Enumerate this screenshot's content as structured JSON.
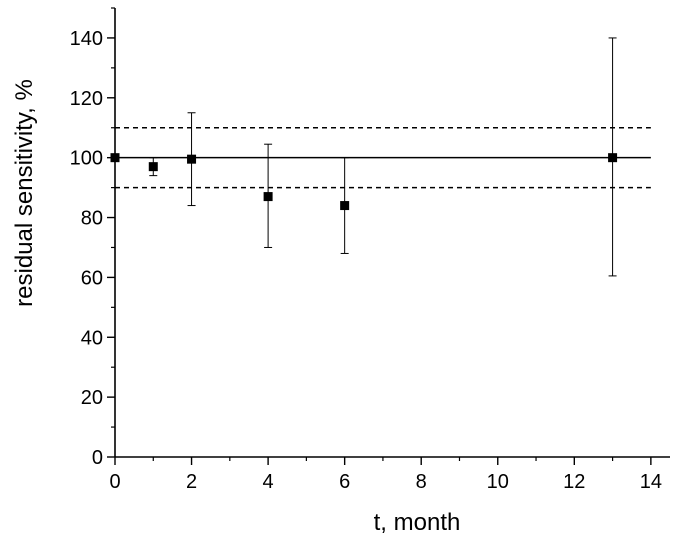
{
  "chart_data": {
    "type": "scatter",
    "xlabel": "t, month",
    "ylabel": "residual sensitivity, %",
    "xlim": [
      0,
      14.5
    ],
    "ylim": [
      0,
      150
    ],
    "xticks": [
      0,
      2,
      4,
      6,
      8,
      10,
      12,
      14
    ],
    "yticks": [
      0,
      20,
      40,
      60,
      80,
      100,
      120,
      140
    ],
    "grid": false,
    "legend": "none",
    "series": [
      {
        "marker": "square",
        "color": "#000000",
        "points": [
          {
            "x": 0,
            "y": 100,
            "err_low": 0,
            "err_high": 0
          },
          {
            "x": 1,
            "y": 97,
            "err_low": 3,
            "err_high": 3
          },
          {
            "x": 2,
            "y": 99.5,
            "err_low": 15.5,
            "err_high": 15.5
          },
          {
            "x": 4,
            "y": 87,
            "err_low": 17,
            "err_high": 17.5
          },
          {
            "x": 6,
            "y": 84,
            "err_low": 16,
            "err_high": 16
          },
          {
            "x": 13,
            "y": 100,
            "err_low": 39.5,
            "err_high": 40
          }
        ]
      }
    ],
    "reference_lines": [
      {
        "y": 100,
        "style": "solid",
        "color": "#000000"
      },
      {
        "y": 110,
        "style": "dashed",
        "color": "#000000"
      },
      {
        "y": 90,
        "style": "dashed",
        "color": "#000000"
      }
    ]
  }
}
